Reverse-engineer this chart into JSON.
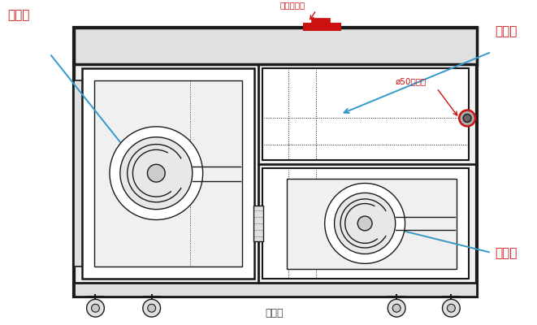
{
  "bg": "#ffffff",
  "lc": "#1a1a1a",
  "lc_light": "#555555",
  "rc": "#cc1111",
  "bac": "#3399cc",
  "face_white": "#ffffff",
  "face_light": "#f0f0f0",
  "face_med": "#e0e0e0",
  "face_dark": "#c8c8c8",
  "fig_w": 6.61,
  "fig_h": 4.0,
  "dpi": 100,
  "xlim": [
    0,
    661
  ],
  "ylim": [
    0,
    400
  ],
  "labels": {
    "yu_leng_xiang": "预冷箱",
    "ce_shi_xiang": "测试箱",
    "yu_re_xiang": "预热箱",
    "chang_wen": "常温排气孔",
    "phi50": "ø50测试孔",
    "caption": "主视图"
  }
}
